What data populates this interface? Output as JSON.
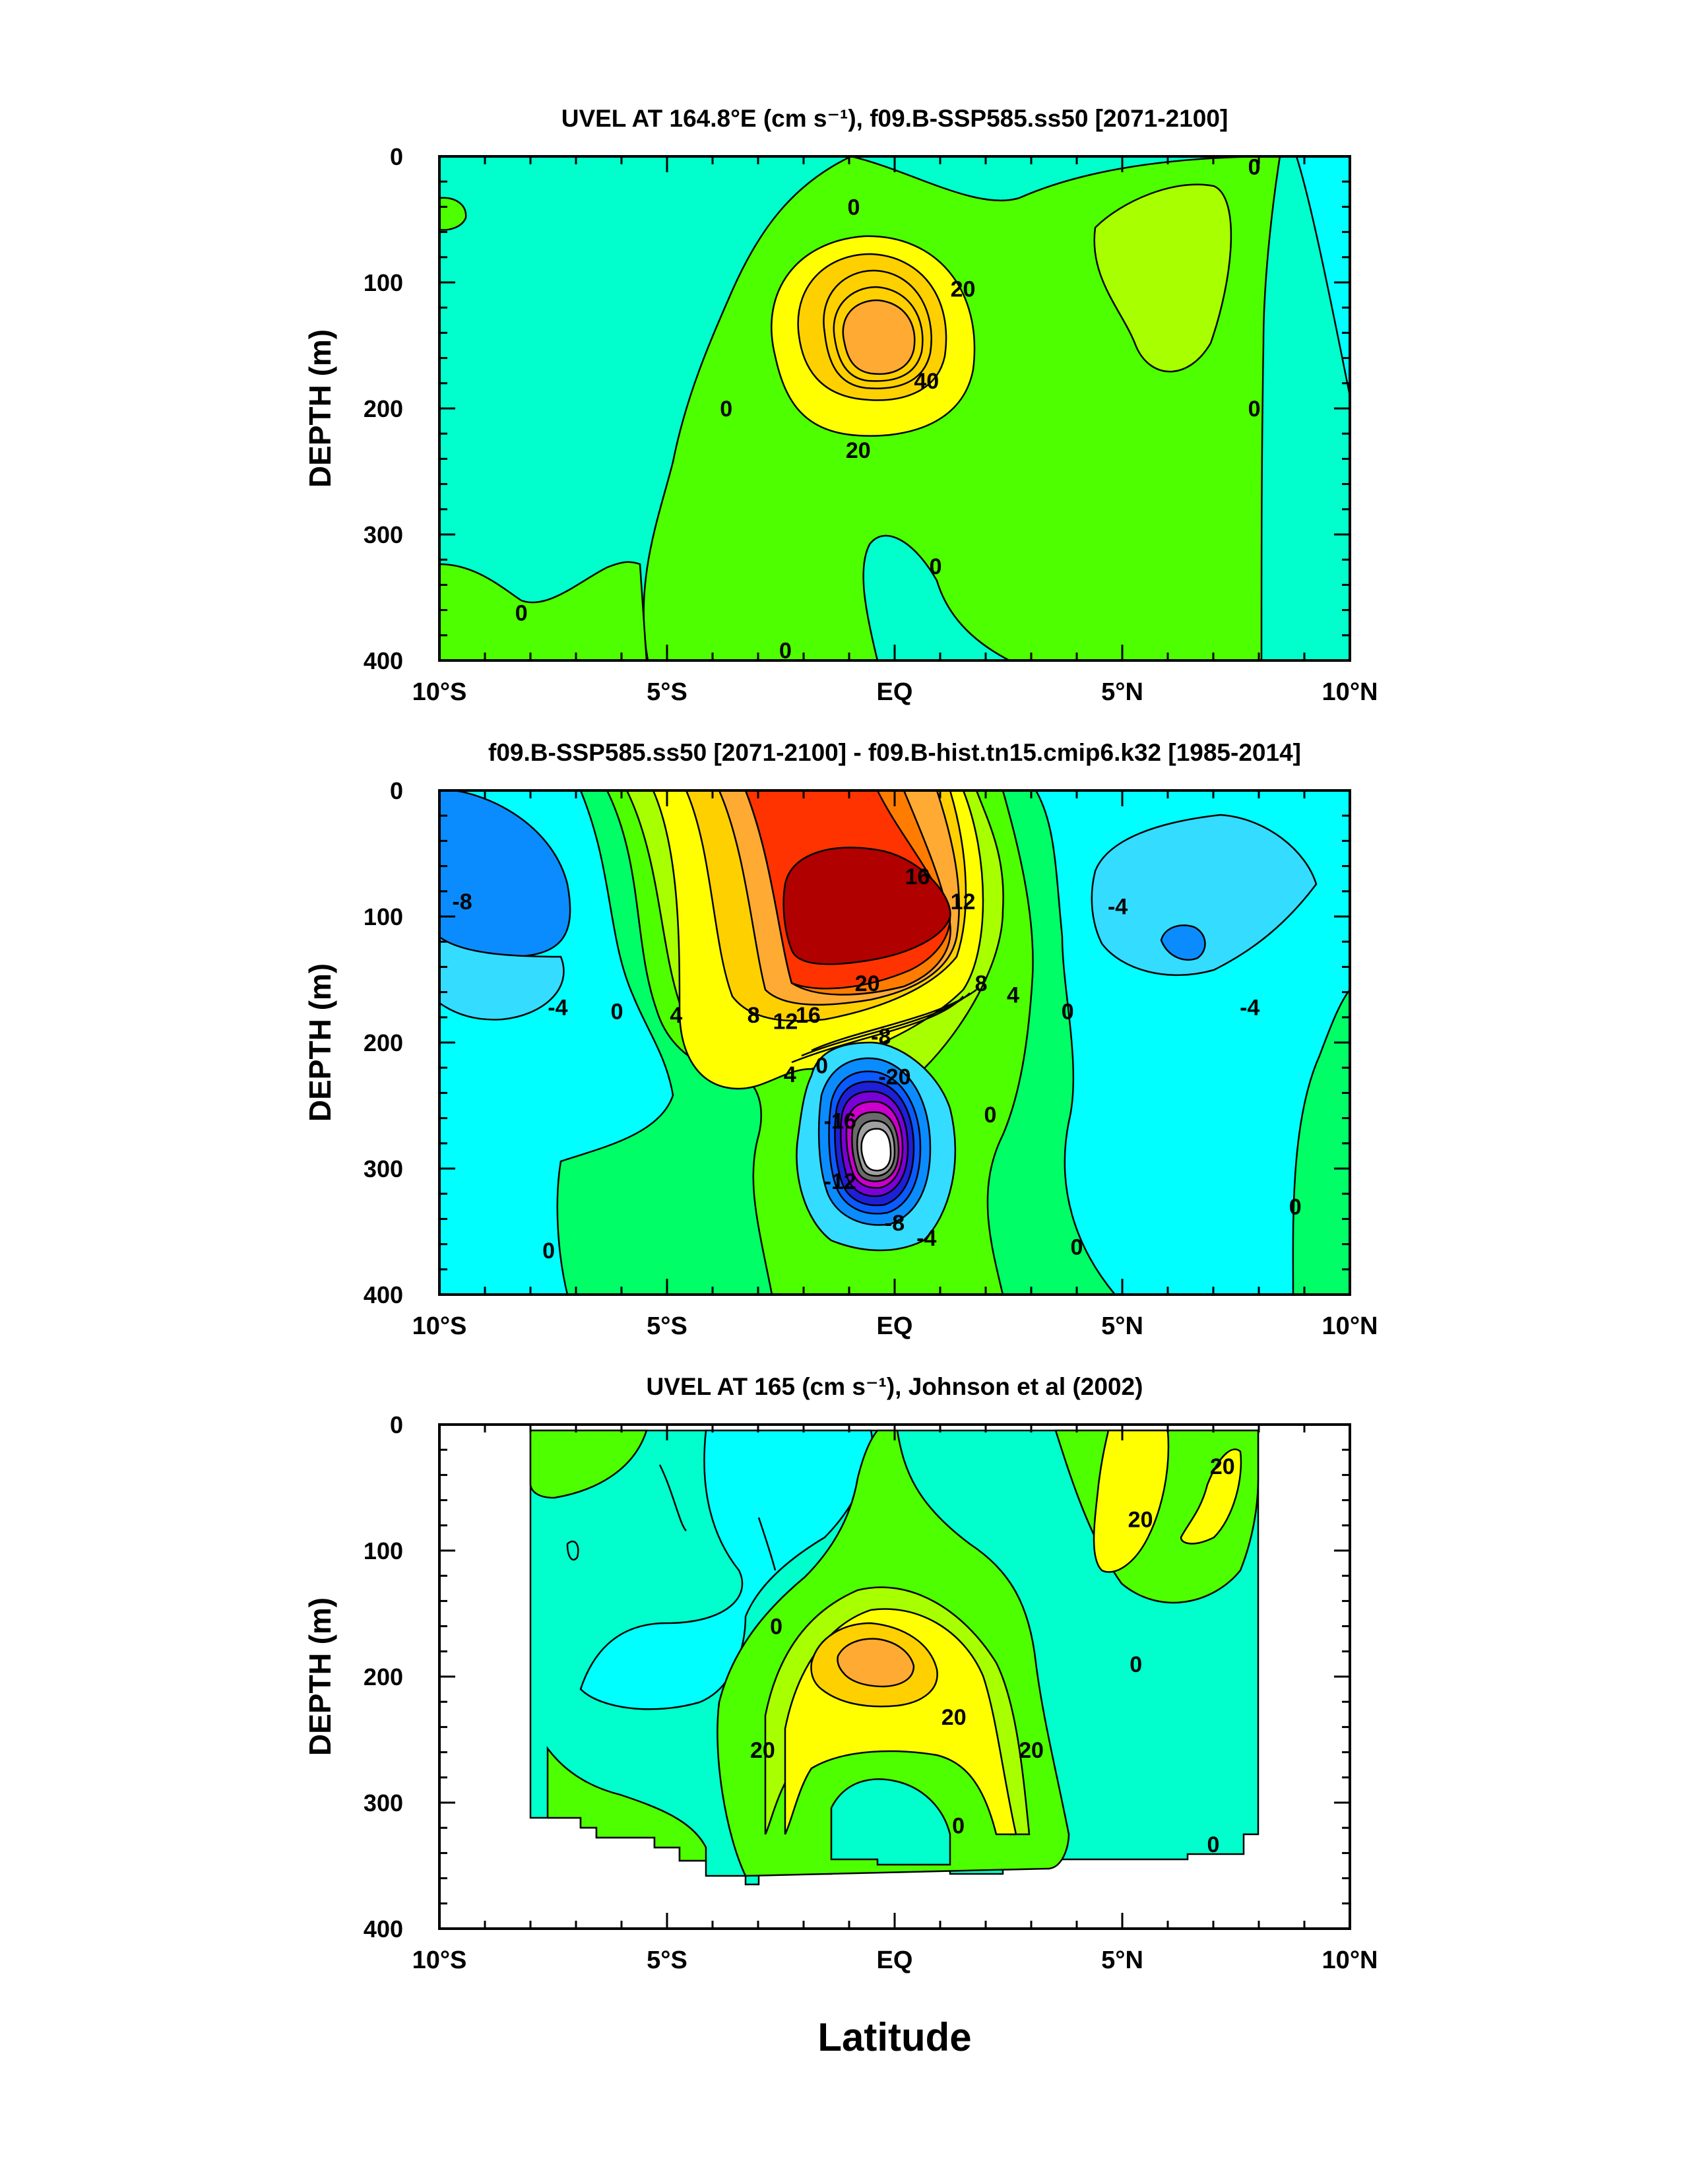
{
  "colors": {
    "levels": [
      "#ffffff",
      "#a0a0a0",
      "#6a6a6a",
      "#cc00cc",
      "#7a00d8",
      "#1f1fd6",
      "#0a5aff",
      "#0a8cff",
      "#15c4ff",
      "#34dcff",
      "#00ffff",
      "#00ffcc",
      "#00ff66",
      "#4eff00",
      "#a8ff00",
      "#ffff00",
      "#ffd000",
      "#ffaa33",
      "#ff7c00",
      "#ff3300",
      "#b00000"
    ],
    "line": "#000000"
  },
  "chart_data": [
    {
      "type": "contour",
      "title": "UVEL AT 164.8°E (cm s⁻¹), f09.B-SSP585.ss50 [2071-2100]",
      "xlabel": "",
      "ylabel": "DEPTH (m)",
      "x_ticks": [
        "10°S",
        "5°S",
        "EQ",
        "5°N",
        "10°N"
      ],
      "y_ticks": [
        "0",
        "100",
        "200",
        "300",
        "400"
      ],
      "xlim": [
        -10,
        10
      ],
      "ylim": [
        0,
        400
      ],
      "contour_labels": [
        {
          "lat": -0.9,
          "depth": 40,
          "text": "0"
        },
        {
          "lat": 1.5,
          "depth": 105,
          "text": "20"
        },
        {
          "lat": 0.7,
          "depth": 178,
          "text": "40"
        },
        {
          "lat": -0.8,
          "depth": 233,
          "text": "20"
        },
        {
          "lat": -3.7,
          "depth": 200,
          "text": "0"
        },
        {
          "lat": 0.9,
          "depth": 325,
          "text": "0"
        },
        {
          "lat": -8.2,
          "depth": 362,
          "text": "0"
        },
        {
          "lat": -2.4,
          "depth": 392,
          "text": "0"
        },
        {
          "lat": 7.9,
          "depth": 200,
          "text": "0"
        },
        {
          "lat": 7.9,
          "depth": 8,
          "text": "0"
        }
      ]
    },
    {
      "type": "contour",
      "title": "f09.B-SSP585.ss50 [2071-2100] - f09.B-hist.tn15.cmip6.k32 [1985-2014]",
      "xlabel": "",
      "ylabel": "DEPTH (m)",
      "x_ticks": [
        "10°S",
        "5°S",
        "EQ",
        "5°N",
        "10°N"
      ],
      "y_ticks": [
        "0",
        "100",
        "200",
        "300",
        "400"
      ],
      "xlim": [
        -10,
        10
      ],
      "ylim": [
        0,
        400
      ],
      "contour_labels": [
        {
          "lat": -9.5,
          "depth": 88,
          "text": "-8"
        },
        {
          "lat": -7.4,
          "depth": 172,
          "text": "-4"
        },
        {
          "lat": -6.1,
          "depth": 175,
          "text": "0"
        },
        {
          "lat": -4.8,
          "depth": 178,
          "text": "4"
        },
        {
          "lat": -3.1,
          "depth": 178,
          "text": "8"
        },
        {
          "lat": -2.4,
          "depth": 183,
          "text": "12"
        },
        {
          "lat": -1.9,
          "depth": 178,
          "text": "16"
        },
        {
          "lat": -0.6,
          "depth": 153,
          "text": "20"
        },
        {
          "lat": 0.5,
          "depth": 68,
          "text": "16"
        },
        {
          "lat": 1.5,
          "depth": 88,
          "text": "12"
        },
        {
          "lat": 1.9,
          "depth": 153,
          "text": "8"
        },
        {
          "lat": 2.6,
          "depth": 162,
          "text": "4"
        },
        {
          "lat": 3.8,
          "depth": 175,
          "text": "0"
        },
        {
          "lat": 4.9,
          "depth": 92,
          "text": "-4"
        },
        {
          "lat": 7.8,
          "depth": 172,
          "text": "-4"
        },
        {
          "lat": -0.3,
          "depth": 195,
          "text": "-8"
        },
        {
          "lat": -1.6,
          "depth": 218,
          "text": "0"
        },
        {
          "lat": -2.3,
          "depth": 225,
          "text": "4"
        },
        {
          "lat": 0.0,
          "depth": 227,
          "text": "-20"
        },
        {
          "lat": -1.2,
          "depth": 262,
          "text": "-16"
        },
        {
          "lat": -1.2,
          "depth": 310,
          "text": "-12"
        },
        {
          "lat": 0.0,
          "depth": 343,
          "text": "-8"
        },
        {
          "lat": 0.7,
          "depth": 355,
          "text": "-4"
        },
        {
          "lat": 2.1,
          "depth": 257,
          "text": "0"
        },
        {
          "lat": 4.0,
          "depth": 362,
          "text": "0"
        },
        {
          "lat": -7.6,
          "depth": 365,
          "text": "0"
        },
        {
          "lat": 8.8,
          "depth": 330,
          "text": "0"
        }
      ]
    },
    {
      "type": "contour",
      "title": "UVEL AT 165 (cm s⁻¹), Johnson et al (2002)",
      "xlabel": "Latitude",
      "ylabel": "DEPTH (m)",
      "x_ticks": [
        "10°S",
        "5°S",
        "EQ",
        "5°N",
        "10°N"
      ],
      "y_ticks": [
        "0",
        "100",
        "200",
        "300",
        "400"
      ],
      "xlim": [
        -10,
        10
      ],
      "ylim": [
        0,
        400
      ],
      "contour_labels": [
        {
          "lat": 7.2,
          "depth": 33,
          "text": "20"
        },
        {
          "lat": 5.4,
          "depth": 75,
          "text": "20"
        },
        {
          "lat": 5.3,
          "depth": 190,
          "text": "0"
        },
        {
          "lat": -2.6,
          "depth": 160,
          "text": "0"
        },
        {
          "lat": 1.3,
          "depth": 232,
          "text": "20"
        },
        {
          "lat": -2.9,
          "depth": 258,
          "text": "20"
        },
        {
          "lat": 3.0,
          "depth": 258,
          "text": "20"
        },
        {
          "lat": 1.4,
          "depth": 318,
          "text": "0"
        },
        {
          "lat": 7.0,
          "depth": 333,
          "text": "0"
        }
      ]
    }
  ]
}
